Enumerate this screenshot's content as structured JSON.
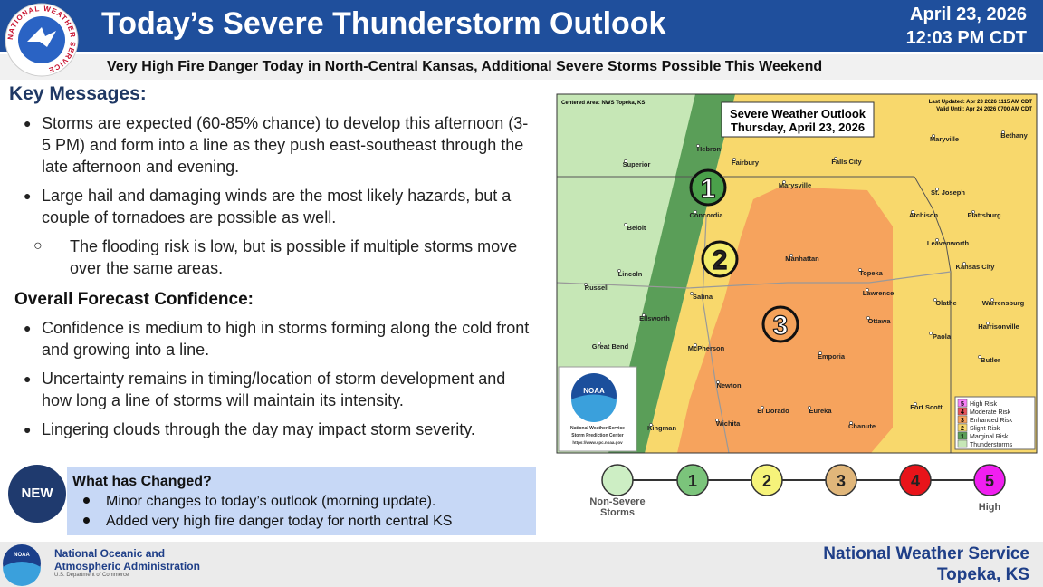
{
  "header": {
    "title": "Today’s Severe Thunderstorm Outlook",
    "date": "April 23, 2026",
    "time": "12:03 PM CDT",
    "subtitle": "Very High Fire Danger Today in North-Central Kansas, Additional Severe Storms Possible This Weekend",
    "logo_text": "NATIONAL WEATHER SERVICE"
  },
  "key_messages": {
    "heading": "Key Messages:",
    "bullets": [
      "Storms are expected (60-85% chance) to develop this afternoon (3-5 PM) and form into a line as they push east-southeast through the late afternoon and evening.",
      "Large hail and damaging winds are the most likely hazards, but a couple of tornadoes are possible as well."
    ],
    "sub_bullets": [
      "The flooding risk is low, but is possible if multiple storms move over the same areas."
    ]
  },
  "confidence": {
    "heading": "Overall Forecast Confidence:",
    "bullets": [
      "Confidence is medium to high in storms forming along the cold front and growing into a line.",
      "Uncertainty remains in timing/location of storm development and how long a line of storms will maintain its intensity.",
      "Lingering clouds through the day may impact storm severity."
    ]
  },
  "changes": {
    "badge": "NEW",
    "heading": "What has Changed?",
    "items": [
      "Minor changes to today’s outlook (morning update).",
      "Added very high fire danger today for north central KS"
    ]
  },
  "map": {
    "centered_area": "Centered Area: NWS Topeka, KS",
    "last_updated": "Last Updated: Apr 23 2026 1115 AM CDT",
    "valid_until": "Valid Until: Apr 24 2026 0700 AM CDT",
    "title": [
      "Severe Weather Outlook",
      "Thursday, April 23, 2026"
    ],
    "cities": [
      "Hebron",
      "Fairbury",
      "Falls City",
      "Maryville",
      "Bethany",
      "Superior",
      "Marysville",
      "St. Joseph",
      "Atchison",
      "Plattsburg",
      "Concordia",
      "Beloit",
      "Leavenworth",
      "Manhattan",
      "Kansas City",
      "Lincoln",
      "Topeka",
      "Lawrence",
      "Russell",
      "Salina",
      "Olathe",
      "Warrensburg",
      "Ellsworth",
      "Ottawa",
      "Harrisonville",
      "Paola",
      "Great Bend",
      "McPherson",
      "Emporia",
      "Butler",
      "Newton",
      "El Dorado",
      "Eureka",
      "Fort Scott",
      "Wichita",
      "Chanute",
      "Kingman"
    ],
    "risk_markers": [
      "1",
      "2",
      "3"
    ],
    "legend": [
      {
        "number": "5",
        "label": "High Risk"
      },
      {
        "number": "4",
        "label": "Moderate Risk"
      },
      {
        "number": "3",
        "label": "Enhanced Risk"
      },
      {
        "number": "2",
        "label": "Slight Risk"
      },
      {
        "number": "1",
        "label": "Marginal Risk"
      },
      {
        "label": "Thunderstorms"
      }
    ],
    "spc_logo": "NOAA",
    "spc_text": [
      "National Weather Service",
      "Storm Prediction Center",
      "https://www.spc.noaa.gov"
    ]
  },
  "risk_scale": {
    "levels": [
      "1",
      "2",
      "3",
      "4",
      "5"
    ],
    "low_label": "Non-Severe Storms",
    "high_label": "High"
  },
  "footer": {
    "logo_text": "NOAA",
    "agency": [
      "National Oceanic and",
      "Atmospheric Administration"
    ],
    "department": "U.S. Department of Commerce",
    "office": [
      "National Weather Service",
      "Topeka, KS"
    ]
  }
}
